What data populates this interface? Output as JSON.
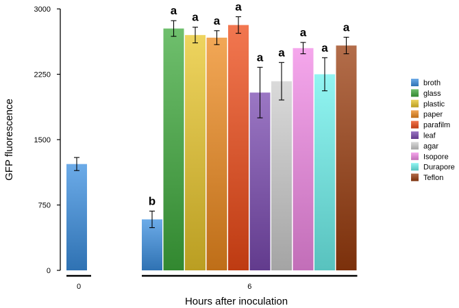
{
  "chart_data": {
    "type": "bar",
    "title": "",
    "xlabel": "Hours after inoculation",
    "ylabel": "GFP fluorescence",
    "ylim": [
      0,
      3000
    ],
    "yticks": [
      0,
      750,
      1500,
      2250,
      3000
    ],
    "groups": [
      {
        "label": "0",
        "bars": [
          {
            "series": "broth",
            "value": 1220,
            "error": 75,
            "sig": ""
          }
        ]
      },
      {
        "label": "6",
        "bars": [
          {
            "series": "broth",
            "value": 585,
            "error": 95,
            "sig": "b"
          },
          {
            "series": "glass",
            "value": 2775,
            "error": 90,
            "sig": "a"
          },
          {
            "series": "plastic",
            "value": 2700,
            "error": 90,
            "sig": "a"
          },
          {
            "series": "paper",
            "value": 2670,
            "error": 80,
            "sig": "a"
          },
          {
            "series": "parafilm",
            "value": 2815,
            "error": 95,
            "sig": "a"
          },
          {
            "series": "leaf",
            "value": 2040,
            "error": 290,
            "sig": "a"
          },
          {
            "series": "agar",
            "value": 2170,
            "error": 215,
            "sig": "a"
          },
          {
            "series": "Isopore",
            "value": 2550,
            "error": 65,
            "sig": "a"
          },
          {
            "series": "Durapore",
            "value": 2250,
            "error": 190,
            "sig": "a"
          },
          {
            "series": "Teflon",
            "value": 2580,
            "error": 95,
            "sig": "a"
          }
        ]
      }
    ],
    "legend": [
      {
        "name": "broth",
        "color": "#3b8fe0"
      },
      {
        "name": "glass",
        "color": "#3faa3c"
      },
      {
        "name": "plastic",
        "color": "#e8c52a"
      },
      {
        "name": "paper",
        "color": "#ee8a1e"
      },
      {
        "name": "parafilm",
        "color": "#ee4a16"
      },
      {
        "name": "leaf",
        "color": "#7a4ab0"
      },
      {
        "name": "agar",
        "color": "#cdcdcd"
      },
      {
        "name": "Isopore",
        "color": "#f28ae6"
      },
      {
        "name": "Durapore",
        "color": "#6ef2ee"
      },
      {
        "name": "Teflon",
        "color": "#9a3c0e"
      }
    ],
    "legend_position": "right"
  }
}
